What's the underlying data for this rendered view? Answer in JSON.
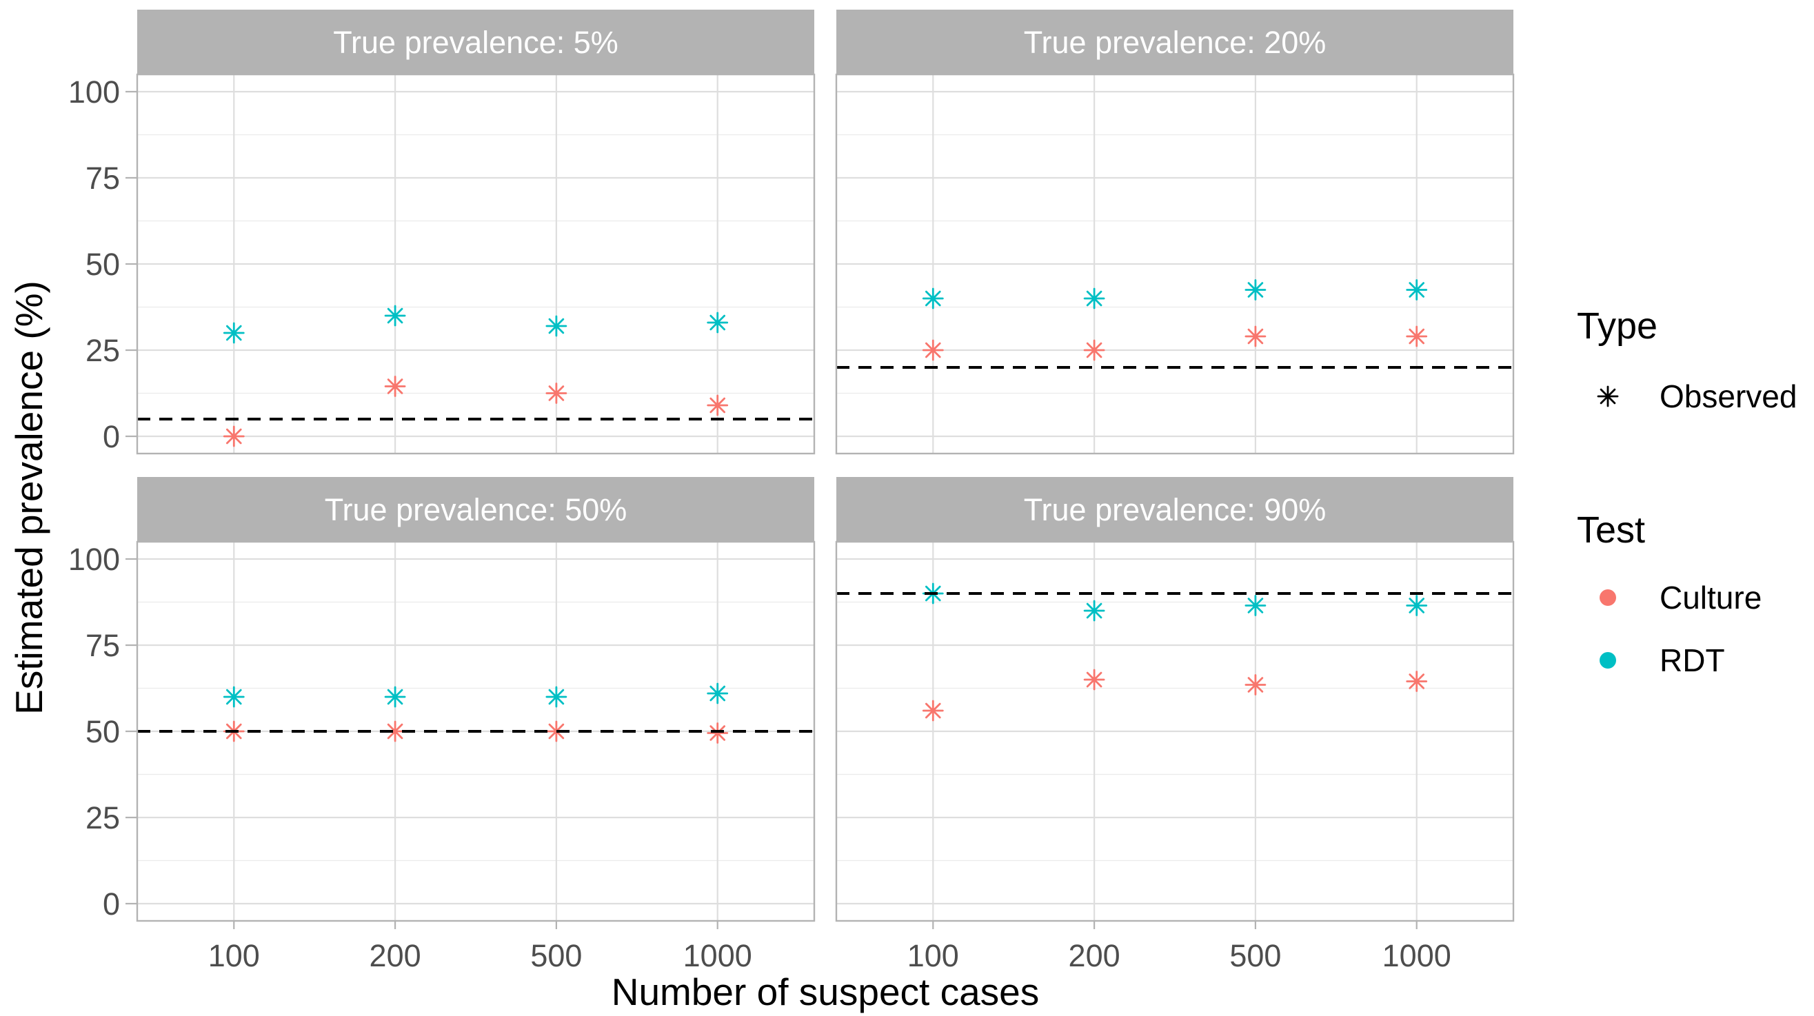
{
  "chart_data": {
    "type": "scatter",
    "xlabel": "Number of suspect cases",
    "ylabel": "Estimated prevalence (%)",
    "categories": [
      "100",
      "200",
      "500",
      "1000"
    ],
    "ylim": [
      -5,
      105
    ],
    "y_ticks": [
      0,
      25,
      50,
      75,
      100
    ],
    "grid": true,
    "legend_position": "right",
    "reference_line_style": "dashed",
    "legends": [
      {
        "title": "Type",
        "items": [
          {
            "label": "Observed",
            "shape": "asterisk",
            "color": "#000000"
          }
        ]
      },
      {
        "title": "Test",
        "items": [
          {
            "label": "Culture",
            "color": "#F8766D"
          },
          {
            "label": "RDT",
            "color": "#00BFC4"
          }
        ]
      }
    ],
    "facets": [
      {
        "title": "True prevalence: 5%",
        "reference_line": 5,
        "series": [
          {
            "name": "Culture",
            "marker_type": "Observed",
            "values": [
              0,
              14.5,
              12.5,
              9
            ]
          },
          {
            "name": "RDT",
            "marker_type": "Observed",
            "values": [
              30,
              35,
              32,
              33
            ]
          }
        ]
      },
      {
        "title": "True prevalence: 20%",
        "reference_line": 20,
        "series": [
          {
            "name": "Culture",
            "marker_type": "Observed",
            "values": [
              25,
              25,
              29,
              29
            ]
          },
          {
            "name": "RDT",
            "marker_type": "Observed",
            "values": [
              40,
              40,
              42.5,
              42.5
            ]
          }
        ]
      },
      {
        "title": "True prevalence: 50%",
        "reference_line": 50,
        "series": [
          {
            "name": "Culture",
            "marker_type": "Observed",
            "values": [
              50,
              50,
              50,
              49.5
            ]
          },
          {
            "name": "RDT",
            "marker_type": "Observed",
            "values": [
              60,
              60,
              60,
              61
            ]
          }
        ]
      },
      {
        "title": "True prevalence: 90%",
        "reference_line": 90,
        "series": [
          {
            "name": "Culture",
            "marker_type": "Observed",
            "values": [
              56,
              65,
              63.5,
              64.5
            ]
          },
          {
            "name": "RDT",
            "marker_type": "Observed",
            "values": [
              90,
              85,
              86.5,
              86.5
            ]
          }
        ]
      }
    ]
  }
}
